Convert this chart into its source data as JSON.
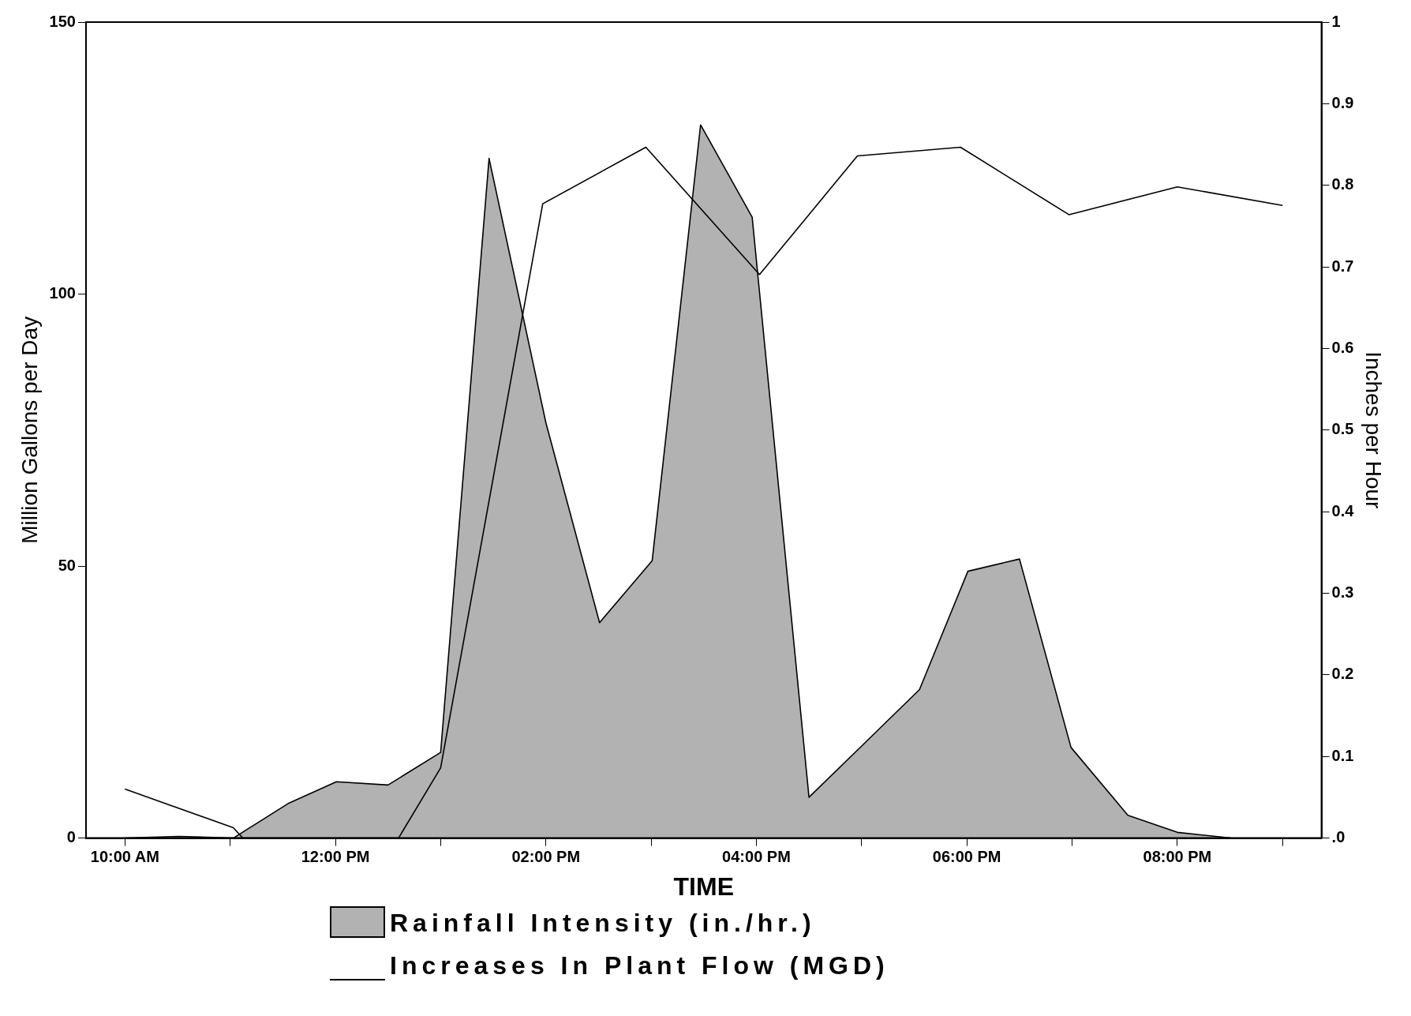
{
  "chart_data": {
    "type": "line",
    "xlabel": "TIME",
    "ylabel": "Million Gallons per Day",
    "y2label": "Inches per Hour",
    "xlim": [
      9.63,
      21.37
    ],
    "xticks": [
      {
        "value": 10,
        "label": "10:00 AM"
      },
      {
        "value": 11,
        "label": null
      },
      {
        "value": 12,
        "label": "12:00 PM"
      },
      {
        "value": 13,
        "label": null
      },
      {
        "value": 14,
        "label": "02:00 PM"
      },
      {
        "value": 15,
        "label": null
      },
      {
        "value": 16,
        "label": "04:00 PM"
      },
      {
        "value": 17,
        "label": null
      },
      {
        "value": 18,
        "label": "06:00 PM"
      },
      {
        "value": 19,
        "label": null
      },
      {
        "value": 20,
        "label": "08:00 PM"
      },
      {
        "value": 21,
        "label": null
      }
    ],
    "ylim": [
      0,
      150
    ],
    "yticks": [
      0,
      50,
      100,
      150
    ],
    "y2lim": [
      0,
      1
    ],
    "y2ticks": [
      {
        "value": 0,
        "label": ".0"
      },
      0.1,
      0.2,
      0.3,
      0.4,
      0.5,
      0.6,
      0.7,
      0.8,
      0.9,
      1
    ],
    "grid": false,
    "legend": "bottom",
    "marker": "none",
    "series": [
      {
        "name": "Rainfall Intensity (in./hr.)",
        "type": "area",
        "axis": "y2",
        "color": "#000000",
        "x": [
          10,
          10.51,
          11.03,
          11.56,
          12.01,
          12.5,
          13,
          13.46,
          14,
          14.51,
          15.01,
          15.47,
          15.96,
          16.5,
          17.01,
          17.55,
          18.01,
          18.5,
          18.99,
          19.53,
          20,
          20.51
        ],
        "values": [
          0,
          0.002,
          0,
          0.043,
          0.069,
          0.065,
          0.105,
          0.833,
          0.509,
          0.264,
          0.34,
          0.874,
          0.761,
          0.05,
          0.114,
          0.182,
          0.327,
          0.342,
          0.111,
          0.028,
          0.007,
          0
        ]
      },
      {
        "name": "Increases In Plant Flow (MGD)",
        "type": "line",
        "color": "#000000",
        "x": [
          10,
          11.03,
          11.12,
          12.6,
          13,
          13.46,
          13.97,
          14.95,
          16.03,
          16.96,
          17.94,
          18.97,
          20,
          21
        ],
        "values": [
          9,
          1.9,
          0,
          0,
          12.9,
          62,
          116.6,
          127,
          103.6,
          125.4,
          127,
          114.6,
          119.7,
          116.3
        ]
      }
    ]
  }
}
